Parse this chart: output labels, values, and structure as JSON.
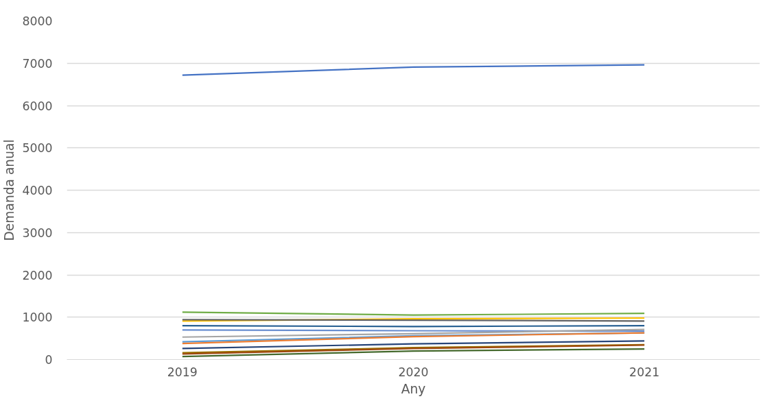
{
  "chart_data": {
    "type": "line",
    "xlabel": "Any",
    "ylabel": "Demanda anual",
    "categories": [
      "2019",
      "2020",
      "2021"
    ],
    "ylim": [
      0,
      8000
    ],
    "yticks": [
      0,
      1000,
      2000,
      3000,
      4000,
      5000,
      6000,
      7000,
      8000
    ],
    "grid": "y",
    "marker": "none",
    "line_style": "solid",
    "series": [
      {
        "color": "#4472c4",
        "values": [
          6720,
          6910,
          6960
        ]
      },
      {
        "color": "#70ad47",
        "values": [
          1120,
          1050,
          1090
        ]
      },
      {
        "color": "#ffc000",
        "values": [
          910,
          960,
          980
        ]
      },
      {
        "color": "#636363",
        "values": [
          940,
          930,
          910
        ]
      },
      {
        "color": "#255e91",
        "values": [
          800,
          780,
          800
        ]
      },
      {
        "color": "#698ed0",
        "values": [
          700,
          680,
          670
        ]
      },
      {
        "color": "#a5a5a5",
        "values": [
          530,
          610,
          710
        ]
      },
      {
        "color": "#5b9bd5",
        "values": [
          420,
          560,
          630
        ]
      },
      {
        "color": "#ed7d31",
        "values": [
          380,
          540,
          630
        ]
      },
      {
        "color": "#264478",
        "values": [
          260,
          370,
          440
        ]
      },
      {
        "color": "#997300",
        "values": [
          160,
          280,
          350
        ]
      },
      {
        "color": "#9e480e",
        "values": [
          130,
          260,
          340
        ]
      },
      {
        "color": "#43682b",
        "values": [
          70,
          200,
          250
        ]
      }
    ]
  }
}
